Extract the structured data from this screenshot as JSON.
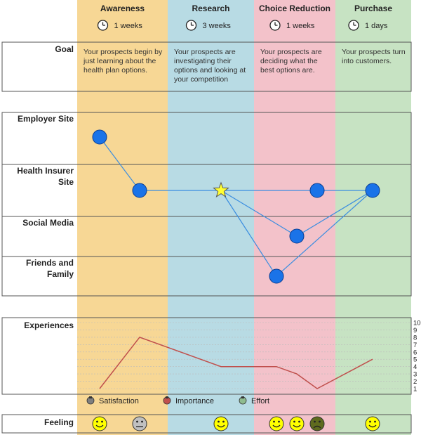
{
  "stages": [
    {
      "name": "Awareness",
      "duration": "1 weeks",
      "goal": "Your prospects begin by just learning about the health plan options.",
      "color": "#f7d795"
    },
    {
      "name": "Research",
      "duration": "3 weeks",
      "goal": "Your prospects are investigating their options and looking at your competition",
      "color": "#b8dbe4"
    },
    {
      "name": "Choice Reduction",
      "duration": "1 weeks",
      "goal": "Your prospects are deciding what the best options are.",
      "color": "#f3c2ca"
    },
    {
      "name": "Purchase",
      "duration": "1 days",
      "goal": "Your prospects turn into customers.",
      "color": "#c7e3c3"
    }
  ],
  "rows": {
    "goal": "Goal",
    "channels": [
      "Employer Site",
      "Health Insurer Site",
      "Social Media",
      "Friends and Family"
    ],
    "experiences": "Experiences",
    "feeling": "Feeling"
  },
  "journey": {
    "points": [
      {
        "channel": 0,
        "type": "circle"
      },
      {
        "channel": 1,
        "type": "circle"
      },
      {
        "channel": 1,
        "type": "star"
      },
      {
        "channel": 3,
        "type": "circle"
      },
      {
        "channel": 2,
        "type": "circle"
      },
      {
        "channel": 1,
        "type": "circle"
      },
      {
        "channel": 1,
        "type": "circle"
      }
    ],
    "links": [
      [
        0,
        1
      ],
      [
        1,
        2
      ],
      [
        2,
        6
      ],
      [
        2,
        3
      ],
      [
        2,
        4
      ],
      [
        3,
        6
      ],
      [
        4,
        6
      ]
    ]
  },
  "chart_data": {
    "type": "line",
    "ylim": [
      1,
      10
    ],
    "yticks": [
      "1",
      "2",
      "3",
      "4",
      "5",
      "6",
      "7",
      "8",
      "9",
      "10"
    ],
    "series": [
      {
        "name": "Importance",
        "color": "#c0504d",
        "values": [
          1,
          8,
          4,
          4,
          3,
          1,
          5
        ]
      }
    ],
    "legend": [
      {
        "name": "Satisfaction",
        "color": "#7f7f7f"
      },
      {
        "name": "Importance",
        "color": "#c0504d"
      },
      {
        "name": "Effort",
        "color": "#8fbc8f"
      }
    ]
  },
  "feelings": [
    "happy",
    "neutral",
    "happy",
    "happy",
    "happy",
    "sad",
    "happy"
  ],
  "colors": {
    "journey_line": "#3a8de0",
    "node_fill": "#1a73e8",
    "star_fill": "#ffff33",
    "grid": "#555555"
  }
}
